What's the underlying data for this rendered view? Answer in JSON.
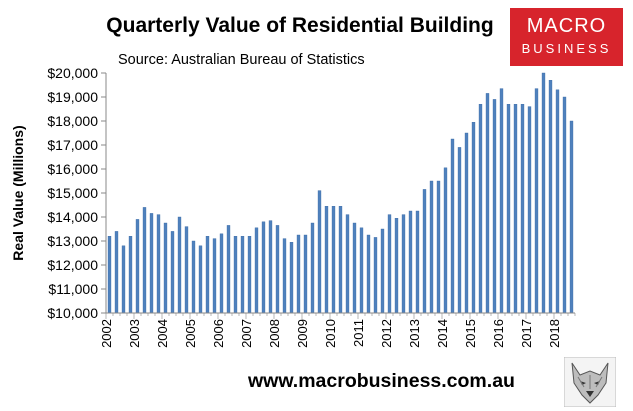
{
  "header": {
    "logo_line1": "MACRO",
    "logo_line2": "BUSINESS"
  },
  "footer": {
    "url": "www.macrobusiness.com.au"
  },
  "colors": {
    "bar": "#4f81bd",
    "bar_edge": "#3a6aa5",
    "axis": "#888888",
    "logo_bg": "#d7242c"
  },
  "icons": {
    "wolf_logo": "wolf-head-icon"
  },
  "chart_data": {
    "type": "bar",
    "title": "Quarterly Value of Residential Building",
    "subtitle": "Source: Australian Bureau of Statistics",
    "xlabel": "",
    "ylabel": "Real Value (Millions)",
    "ylim": [
      10000,
      20000
    ],
    "yticks": [
      10000,
      11000,
      12000,
      13000,
      14000,
      15000,
      16000,
      17000,
      18000,
      19000,
      20000
    ],
    "ytick_labels": [
      "$10,000",
      "$11,000",
      "$12,000",
      "$13,000",
      "$14,000",
      "$15,000",
      "$16,000",
      "$17,000",
      "$18,000",
      "$19,000",
      "$20,000"
    ],
    "x_year_labels": [
      "2002",
      "2003",
      "2004",
      "2005",
      "2006",
      "2007",
      "2008",
      "2009",
      "2010",
      "2011",
      "2012",
      "2013",
      "2014",
      "2015",
      "2016",
      "2017",
      "2018"
    ],
    "grid": false,
    "legend": "none",
    "series": [
      {
        "values": [
          13200,
          13400,
          12800,
          13200,
          13900,
          14400,
          14150,
          14100,
          13750,
          13400,
          14000,
          13600,
          13000,
          12800,
          13200,
          13100,
          13300,
          13650,
          13200,
          13200,
          13200,
          13550,
          13800,
          13850,
          13650,
          13100,
          12950,
          13250,
          13250,
          13750,
          15100,
          14450,
          14450,
          14450,
          14100,
          13750,
          13550,
          13250,
          13150,
          13500,
          14100,
          13950,
          14100,
          14250,
          14250,
          15150,
          15500,
          15500,
          16050,
          17250,
          16900,
          17500,
          17950,
          18700,
          19150,
          18900,
          19350,
          18700,
          18700,
          18700,
          18600,
          19350,
          20000,
          19700,
          19300,
          19000,
          18000
        ]
      }
    ]
  }
}
